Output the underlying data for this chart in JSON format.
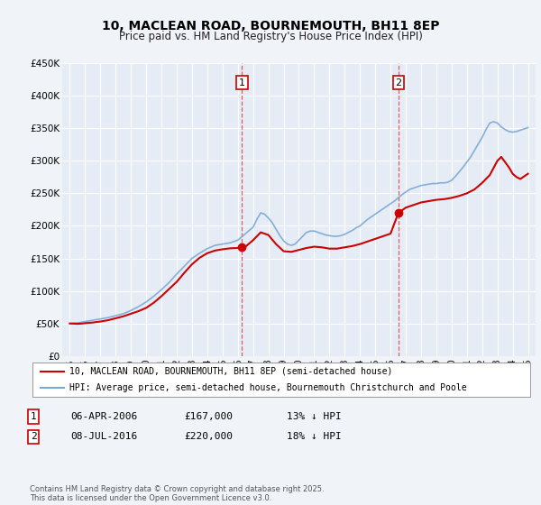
{
  "title": "10, MACLEAN ROAD, BOURNEMOUTH, BH11 8EP",
  "subtitle": "Price paid vs. HM Land Registry's House Price Index (HPI)",
  "background_color": "#f0f4f8",
  "plot_bg_color": "#e6ecf5",
  "grid_color": "#ffffff",
  "red_line_color": "#cc0000",
  "blue_line_color": "#7aa8d4",
  "marker1_x": 2006.27,
  "marker1_y": 167000,
  "marker2_x": 2016.52,
  "marker2_y": 220000,
  "annotation1": [
    "1",
    "06-APR-2006",
    "£167,000",
    "13% ↓ HPI"
  ],
  "annotation2": [
    "2",
    "08-JUL-2016",
    "£220,000",
    "18% ↓ HPI"
  ],
  "legend_line1": "10, MACLEAN ROAD, BOURNEMOUTH, BH11 8EP (semi-detached house)",
  "legend_line2": "HPI: Average price, semi-detached house, Bournemouth Christchurch and Poole",
  "footer": "Contains HM Land Registry data © Crown copyright and database right 2025.\nThis data is licensed under the Open Government Licence v3.0.",
  "ylim": [
    0,
    450000
  ],
  "xlim_start": 1994.5,
  "xlim_end": 2025.5,
  "yticks": [
    0,
    50000,
    100000,
    150000,
    200000,
    250000,
    300000,
    350000,
    400000,
    450000
  ],
  "ytick_labels": [
    "£0",
    "£50K",
    "£100K",
    "£150K",
    "£200K",
    "£250K",
    "£300K",
    "£350K",
    "£400K",
    "£450K"
  ],
  "xticks": [
    1995,
    1996,
    1997,
    1998,
    1999,
    2000,
    2001,
    2002,
    2003,
    2004,
    2005,
    2006,
    2007,
    2008,
    2009,
    2010,
    2011,
    2012,
    2013,
    2014,
    2015,
    2016,
    2017,
    2018,
    2019,
    2020,
    2021,
    2022,
    2023,
    2024,
    2025
  ],
  "hpi_x": [
    1995.0,
    1995.5,
    1996.0,
    1996.5,
    1997.0,
    1997.5,
    1998.0,
    1998.5,
    1999.0,
    1999.5,
    2000.0,
    2000.5,
    2001.0,
    2001.5,
    2002.0,
    2002.5,
    2003.0,
    2003.5,
    2004.0,
    2004.5,
    2005.0,
    2005.5,
    2006.0,
    2006.5,
    2007.0,
    2007.25,
    2007.5,
    2007.75,
    2008.0,
    2008.25,
    2008.5,
    2008.75,
    2009.0,
    2009.25,
    2009.5,
    2009.75,
    2010.0,
    2010.25,
    2010.5,
    2010.75,
    2011.0,
    2011.25,
    2011.5,
    2011.75,
    2012.0,
    2012.25,
    2012.5,
    2012.75,
    2013.0,
    2013.25,
    2013.5,
    2013.75,
    2014.0,
    2014.25,
    2014.5,
    2014.75,
    2015.0,
    2015.25,
    2015.5,
    2015.75,
    2016.0,
    2016.25,
    2016.5,
    2016.75,
    2017.0,
    2017.25,
    2017.5,
    2017.75,
    2018.0,
    2018.25,
    2018.5,
    2018.75,
    2019.0,
    2019.25,
    2019.5,
    2019.75,
    2020.0,
    2020.25,
    2020.5,
    2020.75,
    2021.0,
    2021.25,
    2021.5,
    2021.75,
    2022.0,
    2022.25,
    2022.5,
    2022.75,
    2023.0,
    2023.25,
    2023.5,
    2023.75,
    2024.0,
    2024.25,
    2024.5,
    2024.75,
    2025.0
  ],
  "hpi_y": [
    50000,
    51000,
    53000,
    55000,
    57000,
    59000,
    62000,
    65000,
    70000,
    76000,
    83000,
    92000,
    102000,
    113000,
    126000,
    138000,
    150000,
    158000,
    165000,
    170000,
    172000,
    174000,
    178000,
    188000,
    198000,
    210000,
    220000,
    218000,
    212000,
    205000,
    195000,
    185000,
    177000,
    172000,
    170000,
    172000,
    178000,
    184000,
    190000,
    192000,
    192000,
    190000,
    188000,
    186000,
    185000,
    184000,
    184000,
    185000,
    187000,
    190000,
    193000,
    197000,
    200000,
    205000,
    210000,
    214000,
    218000,
    222000,
    226000,
    230000,
    234000,
    238000,
    243000,
    248000,
    252000,
    256000,
    258000,
    260000,
    262000,
    263000,
    264000,
    265000,
    265000,
    266000,
    266000,
    267000,
    270000,
    276000,
    283000,
    290000,
    298000,
    306000,
    316000,
    326000,
    336000,
    348000,
    358000,
    360000,
    358000,
    352000,
    348000,
    345000,
    344000,
    345000,
    347000,
    349000,
    351000
  ],
  "prop_x": [
    1995.0,
    1995.25,
    1995.5,
    1995.75,
    1996.0,
    1996.5,
    1997.0,
    1997.5,
    1998.0,
    1998.5,
    1999.0,
    1999.5,
    2000.0,
    2000.5,
    2001.0,
    2001.5,
    2002.0,
    2002.5,
    2003.0,
    2003.5,
    2004.0,
    2004.5,
    2005.0,
    2005.5,
    2006.0,
    2006.27,
    2006.5,
    2007.0,
    2007.5,
    2008.0,
    2008.5,
    2009.0,
    2009.5,
    2010.0,
    2010.5,
    2011.0,
    2011.5,
    2012.0,
    2012.5,
    2013.0,
    2013.5,
    2014.0,
    2014.5,
    2015.0,
    2015.5,
    2016.0,
    2016.52,
    2017.0,
    2017.5,
    2018.0,
    2018.5,
    2019.0,
    2019.5,
    2020.0,
    2020.5,
    2021.0,
    2021.5,
    2022.0,
    2022.5,
    2023.0,
    2023.25,
    2023.5,
    2023.75,
    2024.0,
    2024.25,
    2024.5,
    2025.0
  ],
  "prop_y": [
    50000,
    49800,
    49500,
    49800,
    50500,
    51500,
    53000,
    55000,
    58000,
    61000,
    65000,
    69000,
    74000,
    82000,
    92000,
    103000,
    114000,
    128000,
    141000,
    151000,
    158000,
    162000,
    164000,
    165500,
    166000,
    167000,
    168000,
    178000,
    190000,
    186000,
    172000,
    161000,
    160000,
    163000,
    166000,
    168000,
    167000,
    165000,
    165000,
    167000,
    169000,
    172000,
    176000,
    180000,
    184000,
    188000,
    220000,
    228000,
    232000,
    236000,
    238000,
    240000,
    241000,
    243000,
    246000,
    250000,
    256000,
    266000,
    278000,
    300000,
    306000,
    298000,
    290000,
    280000,
    275000,
    272000,
    280000
  ]
}
